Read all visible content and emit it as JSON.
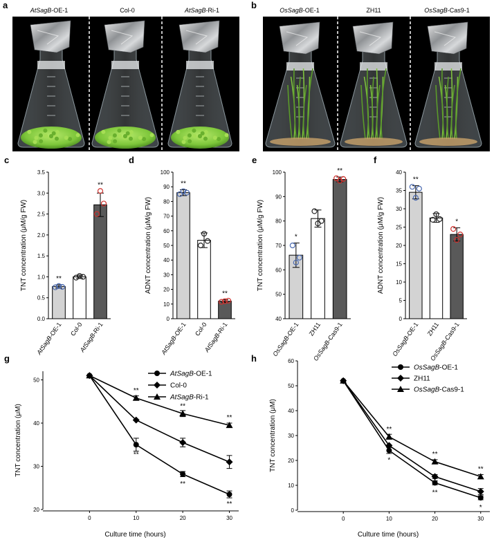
{
  "photos": {
    "a": {
      "letter": "a",
      "labels": [
        {
          "italic": "AtSagB",
          "rest": "-OE-1"
        },
        {
          "italic": "",
          "rest": "Col-0"
        },
        {
          "italic": "AtSagB",
          "rest": "-Ri-1"
        }
      ]
    },
    "b": {
      "letter": "b",
      "labels": [
        {
          "italic": "OsSagB",
          "rest": "-OE-1"
        },
        {
          "italic": "",
          "rest": "ZH11"
        },
        {
          "italic": "OsSagB",
          "rest": "-Cas9-1"
        }
      ]
    }
  },
  "colors": {
    "bar_light": "#d3d3d3",
    "bar_white": "#ffffff",
    "bar_dark": "#595959",
    "dot_blue": "#4a6ab0",
    "dot_black": "#222222",
    "dot_red": "#d0312d",
    "photo_bg": "#000000"
  },
  "chart_data": [
    {
      "id": "c",
      "letter": "c",
      "type": "bar",
      "ylabel": "TNT concentration (μM/g FW)",
      "ylim": [
        0,
        3.5
      ],
      "yticks": [
        0,
        0.5,
        1.0,
        1.5,
        2.0,
        2.5,
        3.0,
        3.5
      ],
      "tickfmt": 1,
      "categories": [
        {
          "italic": "AtSagB",
          "rest": "-OE-1"
        },
        {
          "italic": "",
          "rest": "Col-0"
        },
        {
          "italic": "AtSagB",
          "rest": "-Ri-1"
        }
      ],
      "values": [
        0.77,
        1.0,
        2.72
      ],
      "errors": [
        0.04,
        0.04,
        0.28
      ],
      "points": [
        [
          0.75,
          0.78,
          0.76
        ],
        [
          0.98,
          1.02,
          1.0
        ],
        [
          2.5,
          3.05,
          2.75
        ]
      ],
      "stars": [
        "**",
        "",
        "**"
      ]
    },
    {
      "id": "d",
      "letter": "d",
      "type": "bar",
      "ylabel": "ADNT concentration (μM/g FW)",
      "ylim": [
        0,
        100
      ],
      "yticks": [
        0,
        10,
        20,
        30,
        40,
        50,
        60,
        70,
        80,
        90,
        100
      ],
      "tickfmt": 0,
      "categories": [
        {
          "italic": "AtSagB",
          "rest": "-OE-1"
        },
        {
          "italic": "",
          "rest": "Col-0"
        },
        {
          "italic": "AtSagB",
          "rest": "-Ri-1"
        }
      ],
      "values": [
        86,
        53.5,
        12
      ],
      "errors": [
        2,
        5,
        1
      ],
      "points": [
        [
          85,
          87,
          86
        ],
        [
          50,
          58,
          53
        ],
        [
          11.5,
          12,
          12.3
        ]
      ],
      "stars": [
        "**",
        "",
        "**"
      ]
    },
    {
      "id": "e",
      "letter": "e",
      "type": "bar",
      "ylabel": "TNT concentration (μM/g FW)",
      "ylim": [
        40,
        100
      ],
      "yticks": [
        40,
        50,
        60,
        70,
        80,
        90,
        100
      ],
      "tickfmt": 0,
      "categories": [
        {
          "italic": "OsSagB",
          "rest": "-OE-1"
        },
        {
          "italic": "",
          "rest": "ZH11"
        },
        {
          "italic": "OsSagB",
          "rest": "-Cas9-1"
        }
      ],
      "values": [
        66,
        81,
        97
      ],
      "errors": [
        5,
        3.5,
        1
      ],
      "points": [
        [
          70,
          63,
          65
        ],
        [
          84,
          79,
          80
        ],
        [
          97.5,
          96.5,
          97.2
        ]
      ],
      "stars": [
        "*",
        "",
        "**"
      ]
    },
    {
      "id": "f",
      "letter": "f",
      "type": "bar",
      "ylabel": "ADNT concentration (μM/g FW)",
      "ylim": [
        0,
        40
      ],
      "yticks": [
        0,
        5,
        10,
        15,
        20,
        25,
        30,
        35,
        40
      ],
      "tickfmt": 0,
      "categories": [
        {
          "italic": "OsSagB",
          "rest": "-OE-1"
        },
        {
          "italic": "",
          "rest": "ZH11"
        },
        {
          "italic": "OsSagB",
          "rest": "-Cas9-1"
        }
      ],
      "values": [
        34.5,
        27.5,
        23
      ],
      "errors": [
        1.8,
        1.2,
        1.8
      ],
      "points": [
        [
          36,
          33,
          35.5
        ],
        [
          27,
          28.5,
          27.2
        ],
        [
          24.5,
          21.5,
          23
        ]
      ],
      "stars": [
        "**",
        "",
        "*"
      ]
    },
    {
      "id": "g",
      "letter": "g",
      "type": "line",
      "xlabel": "Culture time (hours)",
      "ylabel": "TNT concentration (μM)",
      "x": [
        0,
        10,
        20,
        30
      ],
      "xlim": [
        -10,
        32
      ],
      "ylim": [
        20,
        52
      ],
      "yticks": [
        20,
        30,
        40,
        50
      ],
      "series": [
        {
          "italic": "AtSagB",
          "rest": "-OE-1",
          "marker": "circle",
          "values": [
            51,
            35,
            28.2,
            23.5
          ],
          "errors": [
            0,
            1.5,
            0.6,
            0.8
          ],
          "stars": [
            "",
            "**",
            "**",
            "**"
          ],
          "star_pos": [
            "",
            "below",
            "below",
            "below"
          ]
        },
        {
          "italic": "",
          "rest": "Col-0",
          "marker": "diamond",
          "values": [
            51,
            40.7,
            35.5,
            31
          ],
          "errors": [
            0,
            0,
            1,
            1.5
          ],
          "stars": [
            "",
            "",
            "",
            ""
          ],
          "star_pos": [
            "",
            "",
            "",
            ""
          ]
        },
        {
          "italic": "AtSagB",
          "rest": "-Ri-1",
          "marker": "triangle",
          "values": [
            51,
            45.8,
            42.2,
            39.5
          ],
          "errors": [
            0,
            0.5,
            0.7,
            0.5
          ],
          "stars": [
            "",
            "**",
            "**",
            "**"
          ],
          "star_pos": [
            "",
            "above",
            "above",
            "above"
          ]
        }
      ]
    },
    {
      "id": "h",
      "letter": "h",
      "type": "line",
      "xlabel": "Culture time (hours)",
      "ylabel": "TNT concentration (μM)",
      "x": [
        0,
        10,
        20,
        30
      ],
      "xlim": [
        -10,
        32
      ],
      "ylim": [
        0,
        60
      ],
      "yticks": [
        0,
        10,
        20,
        30,
        40,
        50,
        60
      ],
      "series": [
        {
          "italic": "OsSagB",
          "rest": "-OE-1",
          "marker": "circle",
          "values": [
            52,
            24,
            11,
            5
          ],
          "errors": [
            0,
            1.2,
            0.8,
            0.8
          ],
          "stars": [
            "",
            "*",
            "**",
            "*"
          ],
          "star_pos": [
            "",
            "below",
            "below",
            "below"
          ]
        },
        {
          "italic": "",
          "rest": "ZH11",
          "marker": "diamond",
          "values": [
            52,
            26,
            13.5,
            7.5
          ],
          "errors": [
            0,
            0,
            0.8,
            1.2
          ],
          "stars": [
            "",
            "",
            "",
            ""
          ],
          "star_pos": [
            "",
            "",
            "",
            ""
          ]
        },
        {
          "italic": "OsSagB",
          "rest": "-Cas9-1",
          "marker": "triangle",
          "values": [
            52,
            29.5,
            19.5,
            13.5
          ],
          "errors": [
            0,
            1,
            0.8,
            0.8
          ],
          "stars": [
            "",
            "**",
            "**",
            "**"
          ],
          "star_pos": [
            "",
            "above",
            "above",
            "above"
          ]
        }
      ]
    }
  ]
}
